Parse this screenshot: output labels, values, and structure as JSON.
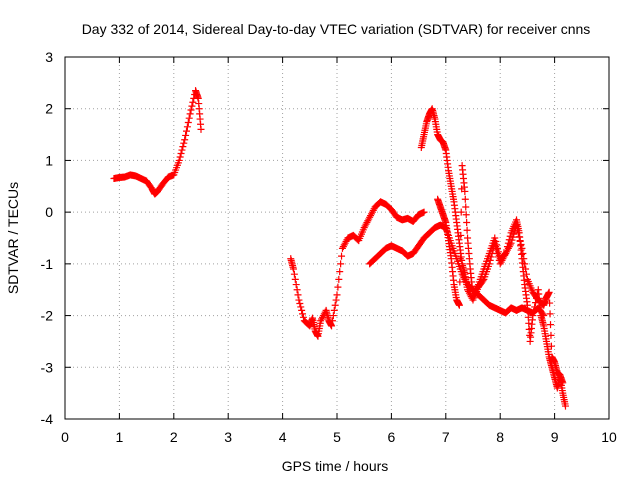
{
  "chart_data": {
    "type": "scatter",
    "title": "Day 332 of 2014, Sidereal Day-to-day VTEC variation (SDTVAR) for receiver cnns",
    "xlabel": "GPS time / hours",
    "ylabel": "SDTVAR / TECUs",
    "xlim": [
      0,
      10
    ],
    "ylim": [
      -4,
      3
    ],
    "xticks": [
      0,
      1,
      2,
      3,
      4,
      5,
      6,
      7,
      8,
      9,
      10
    ],
    "yticks": [
      -4,
      -3,
      -2,
      -1,
      0,
      1,
      2,
      3
    ],
    "grid": true,
    "marker": "plus",
    "color": "#ff0000",
    "series": [
      {
        "name": "seg-a",
        "points": [
          [
            0.9,
            0.65
          ],
          [
            1.0,
            0.67
          ],
          [
            1.1,
            0.68
          ],
          [
            1.2,
            0.72
          ],
          [
            1.3,
            0.7
          ],
          [
            1.4,
            0.65
          ],
          [
            1.5,
            0.6
          ],
          [
            1.6,
            0.45
          ],
          [
            1.65,
            0.35
          ],
          [
            1.7,
            0.4
          ],
          [
            1.8,
            0.55
          ],
          [
            1.9,
            0.68
          ],
          [
            2.0,
            0.72
          ],
          [
            2.1,
            1.0
          ],
          [
            2.2,
            1.4
          ],
          [
            2.3,
            1.9
          ],
          [
            2.4,
            2.35
          ],
          [
            2.45,
            2.2
          ],
          [
            2.5,
            1.6
          ]
        ]
      },
      {
        "name": "seg-b",
        "points": [
          [
            4.15,
            -0.9
          ],
          [
            4.2,
            -1.1
          ],
          [
            4.3,
            -1.7
          ],
          [
            4.4,
            -2.1
          ],
          [
            4.5,
            -2.2
          ],
          [
            4.55,
            -2.05
          ],
          [
            4.6,
            -2.3
          ],
          [
            4.65,
            -2.4
          ],
          [
            4.7,
            -2.1
          ],
          [
            4.8,
            -1.9
          ],
          [
            4.85,
            -2.1
          ],
          [
            4.9,
            -2.2
          ],
          [
            5.0,
            -1.6
          ],
          [
            5.1,
            -0.7
          ],
          [
            5.2,
            -0.5
          ],
          [
            5.3,
            -0.45
          ],
          [
            5.4,
            -0.55
          ],
          [
            5.5,
            -0.3
          ],
          [
            5.6,
            -0.1
          ],
          [
            5.7,
            0.1
          ],
          [
            5.8,
            0.2
          ],
          [
            5.9,
            0.15
          ],
          [
            6.0,
            0.05
          ],
          [
            6.1,
            -0.1
          ],
          [
            6.2,
            -0.15
          ],
          [
            6.3,
            -0.12
          ],
          [
            6.4,
            -0.18
          ],
          [
            6.5,
            -0.05
          ],
          [
            6.6,
            0.0
          ]
        ]
      },
      {
        "name": "seg-c",
        "points": [
          [
            5.6,
            -1.0
          ],
          [
            5.7,
            -0.9
          ],
          [
            5.8,
            -0.8
          ],
          [
            5.9,
            -0.7
          ],
          [
            6.0,
            -0.65
          ],
          [
            6.1,
            -0.7
          ],
          [
            6.2,
            -0.75
          ],
          [
            6.3,
            -0.85
          ],
          [
            6.4,
            -0.8
          ],
          [
            6.5,
            -0.65
          ],
          [
            6.6,
            -0.5
          ],
          [
            6.7,
            -0.4
          ],
          [
            6.8,
            -0.3
          ],
          [
            6.9,
            -0.25
          ],
          [
            7.0,
            -0.3
          ],
          [
            7.1,
            -0.6
          ],
          [
            7.2,
            -0.9
          ],
          [
            7.3,
            -1.2
          ],
          [
            7.4,
            -1.4
          ],
          [
            7.5,
            -1.5
          ],
          [
            7.6,
            -1.6
          ],
          [
            7.7,
            -1.7
          ],
          [
            7.8,
            -1.8
          ],
          [
            7.9,
            -1.85
          ],
          [
            8.0,
            -1.9
          ],
          [
            8.1,
            -1.95
          ],
          [
            8.2,
            -1.85
          ],
          [
            8.3,
            -1.9
          ],
          [
            8.4,
            -1.85
          ],
          [
            8.5,
            -1.9
          ],
          [
            8.6,
            -1.95
          ],
          [
            8.7,
            -1.85
          ],
          [
            8.8,
            -2.0
          ]
        ]
      },
      {
        "name": "seg-d",
        "points": [
          [
            6.55,
            1.25
          ],
          [
            6.6,
            1.5
          ],
          [
            6.65,
            1.75
          ],
          [
            6.7,
            1.9
          ],
          [
            6.75,
            2.0
          ],
          [
            6.8,
            1.8
          ],
          [
            6.85,
            1.5
          ],
          [
            6.9,
            1.4
          ],
          [
            6.95,
            1.35
          ],
          [
            7.0,
            1.2
          ],
          [
            7.05,
            0.8
          ],
          [
            7.1,
            0.5
          ],
          [
            7.15,
            0.2
          ],
          [
            7.2,
            -0.2
          ],
          [
            7.25,
            -0.6
          ],
          [
            7.3,
            -1.0
          ],
          [
            7.35,
            -1.2
          ],
          [
            7.4,
            -1.5
          ],
          [
            7.5,
            -1.7
          ],
          [
            7.6,
            -1.45
          ],
          [
            7.7,
            -1.3
          ],
          [
            7.8,
            -1.0
          ],
          [
            7.9,
            -0.6
          ],
          [
            8.0,
            -1.0
          ],
          [
            8.1,
            -0.8
          ],
          [
            8.2,
            -0.4
          ],
          [
            8.3,
            -0.15
          ],
          [
            8.35,
            -0.4
          ],
          [
            8.4,
            -0.9
          ],
          [
            8.45,
            -1.4
          ],
          [
            8.5,
            -1.8
          ],
          [
            8.55,
            -2.5
          ],
          [
            8.6,
            -2.0
          ],
          [
            8.7,
            -1.5
          ],
          [
            8.75,
            -2.0
          ],
          [
            8.8,
            -2.2
          ],
          [
            8.85,
            -2.5
          ],
          [
            8.9,
            -2.8
          ],
          [
            8.95,
            -3.0
          ],
          [
            9.0,
            -3.2
          ],
          [
            9.05,
            -3.4
          ],
          [
            9.1,
            -3.2
          ],
          [
            9.15,
            -3.5
          ],
          [
            9.2,
            -3.75
          ]
        ]
      },
      {
        "name": "seg-e",
        "points": [
          [
            6.85,
            0.25
          ],
          [
            6.9,
            0.1
          ],
          [
            6.95,
            -0.05
          ],
          [
            7.0,
            -0.2
          ],
          [
            7.05,
            -0.55
          ],
          [
            7.1,
            -0.9
          ],
          [
            7.15,
            -1.4
          ],
          [
            7.2,
            -1.7
          ],
          [
            7.25,
            -1.8
          ],
          [
            7.3,
            0.9
          ],
          [
            7.35,
            0.4
          ],
          [
            7.4,
            -0.5
          ],
          [
            7.45,
            -1.1
          ],
          [
            7.5,
            -1.6
          ],
          [
            7.6,
            -1.4
          ],
          [
            7.7,
            -1.1
          ],
          [
            7.8,
            -0.8
          ],
          [
            7.9,
            -0.5
          ],
          [
            8.0,
            -0.9
          ],
          [
            8.1,
            -0.8
          ],
          [
            8.2,
            -0.6
          ],
          [
            8.3,
            -0.25
          ],
          [
            8.4,
            -0.7
          ],
          [
            8.5,
            -1.3
          ],
          [
            8.6,
            -1.55
          ],
          [
            8.7,
            -1.7
          ],
          [
            8.8,
            -1.8
          ],
          [
            8.85,
            -1.65
          ],
          [
            8.9,
            -1.55
          ],
          [
            8.95,
            -2.8
          ],
          [
            9.0,
            -2.9
          ],
          [
            9.05,
            -3.1
          ],
          [
            9.1,
            -3.15
          ],
          [
            9.15,
            -3.3
          ]
        ]
      }
    ]
  }
}
